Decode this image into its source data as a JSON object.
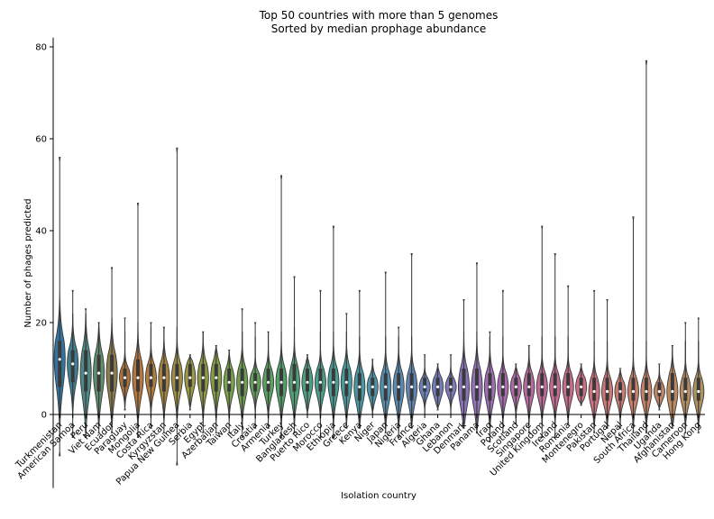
{
  "chart_data": {
    "type": "violin",
    "title": [
      "Top 50 countries with more than 5 genomes",
      "Sorted by median prophage abundance"
    ],
    "xlabel": "Isolation country",
    "ylabel": "Number of phages predicted",
    "ylim": [
      -16,
      82
    ],
    "yticks": [
      0,
      20,
      40,
      60,
      80
    ],
    "grid": false,
    "categories": [
      "Turkmenistan",
      "American Samoa",
      "Peru",
      "Viet Nam",
      "Ecuador",
      "Paraguay",
      "Mongolia",
      "Costa Rica",
      "Kyrgyzstan",
      "Papua New Guinea",
      "Serbia",
      "Egypt",
      "Azerbaijan",
      "Taiwan",
      "Italy",
      "Croatia",
      "Armenia",
      "Turkey",
      "Bangladesh",
      "Puerto Rico",
      "Morocco",
      "Ethiopia",
      "Greece",
      "Kenya",
      "Niger",
      "Japan",
      "Nigeria",
      "France",
      "Algeria",
      "Ghana",
      "Lebanon",
      "Denmark",
      "Panama",
      "Iraq",
      "Poland",
      "Scotland",
      "Singapore",
      "United Kingdom",
      "Ireland",
      "Romania",
      "Montenegro",
      "Pakistan",
      "Portugal",
      "Nepal",
      "South Africa",
      "Thailand",
      "Uganda",
      "Afghanistan",
      "Cameroon",
      "Hong Kong"
    ],
    "colors": [
      "#3274a1",
      "#3f7f94",
      "#4c8a87",
      "#5f8d6e",
      "#8b7b4a",
      "#a9713a",
      "#b8773a",
      "#b07b3d",
      "#a8843f",
      "#a08e42",
      "#9a9842",
      "#8f9a44",
      "#849c47",
      "#7aa24c",
      "#6f9e52",
      "#63a05a",
      "#5aa263",
      "#53a06c",
      "#4fa075",
      "#4c9f80",
      "#4a9e8a",
      "#489c94",
      "#479a9d",
      "#4897a4",
      "#4d93aa",
      "#528eaf",
      "#598ab3",
      "#6186b6",
      "#6a81b9",
      "#747cba",
      "#7f78bb",
      "#8974ba",
      "#9471b8",
      "#9e6eb4",
      "#a86cae",
      "#b16aa8",
      "#b969a1",
      "#c0699a",
      "#c56a93",
      "#c96c8c",
      "#cc6f85",
      "#cd727e",
      "#cd7677",
      "#cb7a71",
      "#c87e6b",
      "#c48267",
      "#c08664",
      "#bb8a62",
      "#b68e61",
      "#b09260"
    ],
    "medians": [
      12,
      11,
      9,
      9,
      9,
      8,
      8,
      8,
      8,
      8,
      8,
      8,
      8,
      7,
      7,
      7,
      7,
      7,
      7,
      7,
      7,
      7,
      7,
      6,
      6,
      6,
      6,
      6,
      6,
      6,
      6,
      6,
      6,
      6,
      6,
      6,
      6,
      6,
      6,
      6,
      6,
      5,
      5,
      5,
      5,
      5,
      5,
      5,
      5,
      5
    ],
    "q1": [
      6,
      7,
      5,
      5,
      5,
      6,
      5,
      6,
      5,
      5,
      6,
      5,
      5,
      5,
      4,
      5,
      5,
      4,
      5,
      5,
      5,
      4,
      4,
      3,
      4,
      3,
      3,
      3,
      5,
      4,
      5,
      3,
      3,
      3,
      4,
      4,
      4,
      4,
      4,
      4,
      4,
      3,
      3,
      3,
      3,
      3,
      4,
      3,
      3,
      3
    ],
    "q3": [
      16,
      14,
      14,
      13,
      13,
      10,
      12,
      11,
      11,
      11,
      11,
      11,
      11,
      10,
      10,
      9,
      10,
      10,
      11,
      10,
      10,
      10,
      10,
      9,
      8,
      9,
      9,
      9,
      8,
      8,
      8,
      10,
      10,
      9,
      9,
      8,
      9,
      9,
      9,
      9,
      8,
      8,
      8,
      7,
      8,
      8,
      7,
      9,
      8,
      8
    ],
    "min": [
      -9,
      -5,
      -5,
      -4,
      -4,
      1,
      -5,
      -3,
      -4,
      -11,
      1,
      -4,
      -4,
      -4,
      -5,
      -3,
      -3,
      -5,
      -4,
      0,
      -5,
      -5,
      -3,
      -3,
      0,
      -4,
      -5,
      -3,
      0,
      1,
      0,
      -3,
      -4,
      -6,
      -4,
      -2,
      -4,
      -5,
      -5,
      -2,
      2,
      -4,
      -3,
      -3,
      -4,
      -4,
      1,
      -3,
      -4,
      -4
    ],
    "max": [
      56,
      27,
      23,
      20,
      32,
      21,
      46,
      20,
      19,
      58,
      13,
      18,
      15,
      14,
      23,
      20,
      18,
      52,
      30,
      13,
      27,
      41,
      22,
      27,
      12,
      31,
      19,
      35,
      13,
      11,
      13,
      25,
      33,
      18,
      27,
      11,
      15,
      41,
      35,
      28,
      11,
      27,
      25,
      10,
      43,
      77,
      11,
      15,
      20,
      21
    ]
  }
}
